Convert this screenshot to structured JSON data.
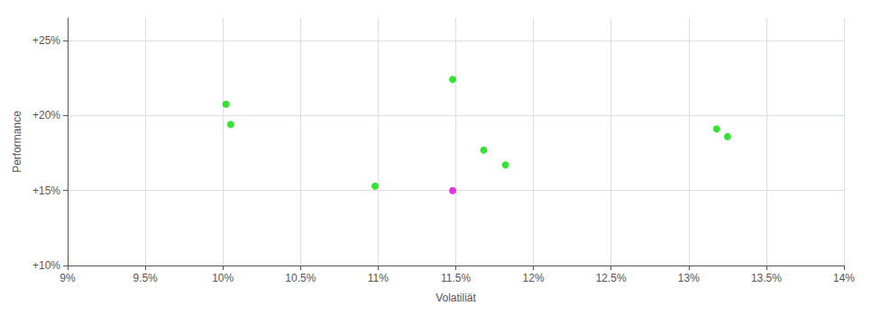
{
  "chart_data": {
    "type": "scatter",
    "xlabel": "Volatiliät",
    "ylabel": "Performance",
    "xlim": [
      0.09,
      0.14
    ],
    "ylim": [
      0.1,
      0.265
    ],
    "xticks": [
      {
        "value": 0.09,
        "label": "9%"
      },
      {
        "value": 0.095,
        "label": "9.5%"
      },
      {
        "value": 0.1,
        "label": "10%"
      },
      {
        "value": 0.105,
        "label": "10.5%"
      },
      {
        "value": 0.11,
        "label": "11%"
      },
      {
        "value": 0.115,
        "label": "11.5%"
      },
      {
        "value": 0.12,
        "label": "12%"
      },
      {
        "value": 0.125,
        "label": "12.5%"
      },
      {
        "value": 0.13,
        "label": "13%"
      },
      {
        "value": 0.135,
        "label": "13.5%"
      },
      {
        "value": 0.14,
        "label": "14%"
      }
    ],
    "yticks": [
      {
        "value": 0.1,
        "label": "+10%"
      },
      {
        "value": 0.15,
        "label": "+15%"
      },
      {
        "value": 0.2,
        "label": "+20%"
      },
      {
        "value": 0.25,
        "label": "+25%"
      }
    ],
    "grid": true,
    "series": [
      {
        "color": "#00dd00",
        "x": [
          0.1002,
          0.1005,
          0.1148,
          0.1168,
          0.1182,
          0.1098,
          0.1318,
          0.1325
        ],
        "values": [
          0.2075,
          0.194,
          0.224,
          0.177,
          0.167,
          0.153,
          0.191,
          0.186
        ]
      },
      {
        "color": "#dd00dd",
        "x": [
          0.1148
        ],
        "values": [
          0.15
        ]
      }
    ]
  }
}
